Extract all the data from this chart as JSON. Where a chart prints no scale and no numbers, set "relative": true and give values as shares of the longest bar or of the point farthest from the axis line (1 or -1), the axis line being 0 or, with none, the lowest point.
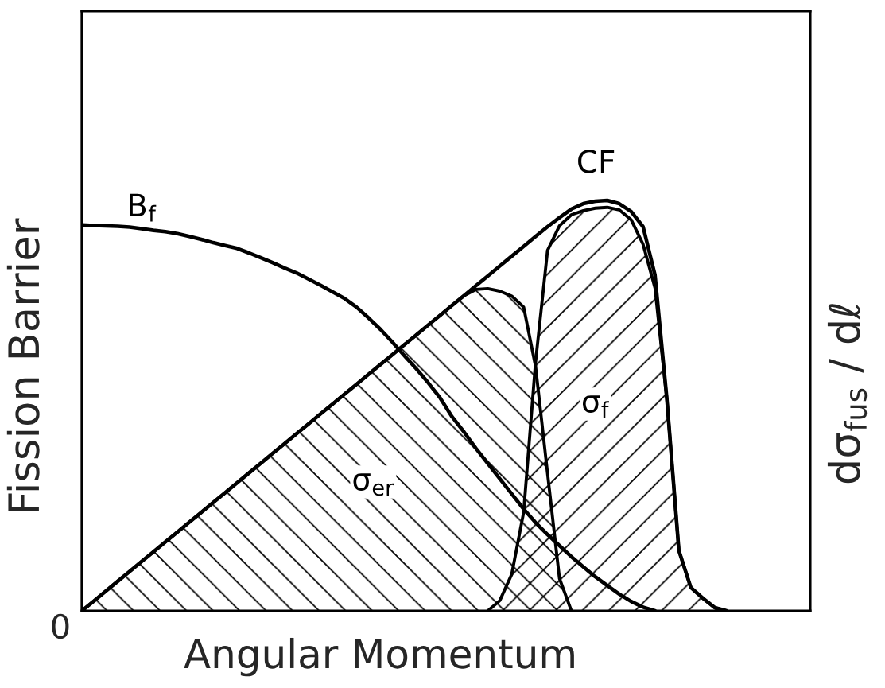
{
  "chart_data": {
    "type": "line",
    "relative": true,
    "xlabel": "Angular Momentum",
    "ylabel": "Fission Barrier",
    "y2label": "dσ$_{fus}$ / dℓ",
    "annotations": [
      "0"
    ],
    "categories": [
      null,
      null,
      null,
      null,
      null,
      null,
      null,
      null,
      null,
      null,
      null,
      null,
      null,
      null,
      null,
      null,
      null,
      null,
      null,
      null,
      null,
      null,
      null,
      null,
      null,
      null,
      null,
      null,
      null,
      null,
      null,
      null,
      null,
      null,
      null,
      null,
      null,
      null,
      null,
      null,
      null,
      null,
      null,
      null,
      null,
      null,
      null,
      null,
      null,
      null,
      null,
      null,
      null,
      null,
      null,
      null,
      null,
      null,
      null,
      null,
      null,
      null
    ],
    "series": [
      {
        "name": "B$_{f}$",
        "color": "#000000",
        "values": [
          0.94,
          0.939,
          0.938,
          0.937,
          0.935,
          0.931,
          0.927,
          0.924,
          0.919,
          0.912,
          0.905,
          0.897,
          0.89,
          0.883,
          0.872,
          0.86,
          0.848,
          0.835,
          0.823,
          0.808,
          0.793,
          0.777,
          0.761,
          0.74,
          0.714,
          0.686,
          0.655,
          0.622,
          0.59,
          0.556,
          0.519,
          0.473,
          0.436,
          0.396,
          0.359,
          0.322,
          0.285,
          0.248,
          0.215,
          0.186,
          0.159,
          0.132,
          0.107,
          0.083,
          0.062,
          0.041,
          0.023,
          0.009,
          0,
          null,
          null,
          null,
          null,
          null,
          null,
          null,
          null,
          null,
          null,
          null,
          null,
          null
        ]
      },
      {
        "name": "CF",
        "color": "#000000",
        "values": [
          0,
          0.024,
          0.048,
          0.072,
          0.096,
          0.12,
          0.144,
          0.168,
          0.192,
          0.216,
          0.24,
          0.264,
          0.288,
          0.312,
          0.336,
          0.36,
          0.384,
          0.408,
          0.432,
          0.456,
          0.48,
          0.504,
          0.528,
          0.552,
          0.576,
          0.6,
          0.624,
          0.648,
          0.672,
          0.696,
          0.72,
          0.744,
          0.768,
          0.792,
          0.816,
          0.84,
          0.864,
          0.888,
          0.912,
          0.936,
          0.958,
          0.979,
          0.992,
          0.998,
          1,
          0.992,
          0.973,
          0.936,
          0.818,
          0.514,
          0.147,
          0.057,
          0.031,
          0.008,
          0,
          null,
          null,
          null,
          null,
          null,
          null,
          null
        ]
      },
      {
        "name": "σ$_{er}$",
        "type": "area",
        "color": "#000000",
        "values": [
          0,
          0.024,
          0.048,
          0.072,
          0.096,
          0.12,
          0.144,
          0.168,
          0.192,
          0.216,
          0.24,
          0.264,
          0.288,
          0.312,
          0.336,
          0.36,
          0.384,
          0.408,
          0.432,
          0.456,
          0.48,
          0.504,
          0.528,
          0.552,
          0.576,
          0.6,
          0.624,
          0.648,
          0.672,
          0.696,
          0.72,
          0.744,
          0.768,
          0.783,
          0.785,
          0.779,
          0.767,
          0.74,
          0.595,
          0.335,
          0.079,
          0,
          null,
          null,
          null,
          null,
          null,
          null,
          null,
          null,
          null,
          null,
          null,
          null,
          null,
          null,
          null,
          null,
          null,
          null,
          null,
          null
        ]
      },
      {
        "name": "σ$_{f}$",
        "type": "area",
        "color": "#000000",
        "values": [
          null,
          null,
          null,
          null,
          null,
          null,
          null,
          null,
          null,
          null,
          null,
          null,
          null,
          null,
          null,
          null,
          null,
          null,
          null,
          null,
          null,
          null,
          null,
          null,
          null,
          null,
          null,
          null,
          null,
          null,
          null,
          null,
          null,
          null,
          0,
          0.025,
          0.089,
          0.24,
          0.607,
          0.878,
          0.938,
          0.965,
          0.975,
          0.981,
          0.983,
          0.977,
          0.953,
          0.893,
          0.787,
          0.514,
          0.147,
          0.057,
          0.031,
          0.008,
          0,
          null,
          null,
          null,
          null,
          null,
          null,
          null
        ]
      }
    ]
  }
}
